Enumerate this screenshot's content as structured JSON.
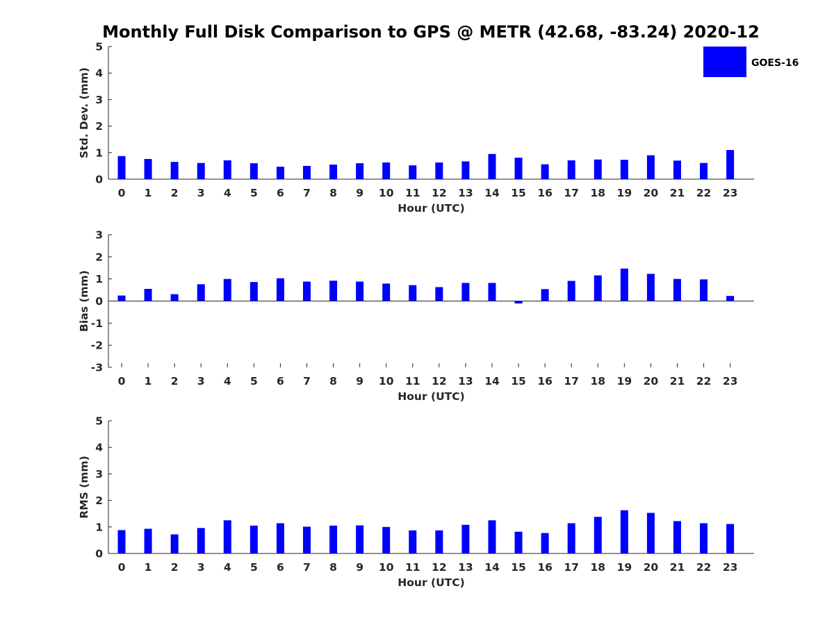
{
  "title": "Monthly Full Disk Comparison to GPS @ METR (42.68, -83.24) 2020-12",
  "colors": {
    "bar": "#0000ff",
    "axis": "#262626"
  },
  "legend": {
    "label": "GOES-16",
    "placement": "top-right"
  },
  "chart_data": [
    {
      "type": "bar",
      "id": "std",
      "title": "",
      "xlabel": "Hour (UTC)",
      "ylabel": "Std. Dev. (mm)",
      "ylim": [
        0,
        5
      ],
      "yticks": [
        0,
        1,
        2,
        3,
        4,
        5
      ],
      "categories": [
        "0",
        "1",
        "2",
        "3",
        "4",
        "5",
        "6",
        "7",
        "8",
        "9",
        "10",
        "11",
        "12",
        "13",
        "14",
        "15",
        "16",
        "17",
        "18",
        "19",
        "20",
        "21",
        "22",
        "23"
      ],
      "series": [
        {
          "name": "GOES-16",
          "values": [
            0.87,
            0.76,
            0.65,
            0.61,
            0.71,
            0.6,
            0.47,
            0.5,
            0.55,
            0.6,
            0.63,
            0.52,
            0.63,
            0.67,
            0.95,
            0.81,
            0.56,
            0.71,
            0.74,
            0.73,
            0.9,
            0.7,
            0.61,
            1.1
          ]
        }
      ]
    },
    {
      "type": "bar",
      "id": "bias",
      "title": "",
      "xlabel": "Hour (UTC)",
      "ylabel": "Bias (mm)",
      "ylim": [
        -3,
        3
      ],
      "yticks": [
        -3,
        -2,
        -1,
        0,
        1,
        2,
        3
      ],
      "categories": [
        "0",
        "1",
        "2",
        "3",
        "4",
        "5",
        "6",
        "7",
        "8",
        "9",
        "10",
        "11",
        "12",
        "13",
        "14",
        "15",
        "16",
        "17",
        "18",
        "19",
        "20",
        "21",
        "22",
        "23"
      ],
      "series": [
        {
          "name": "GOES-16",
          "values": [
            0.25,
            0.55,
            0.31,
            0.76,
            1.0,
            0.86,
            1.03,
            0.88,
            0.92,
            0.88,
            0.79,
            0.72,
            0.63,
            0.82,
            0.82,
            -0.11,
            0.54,
            0.91,
            1.16,
            1.47,
            1.23,
            1.0,
            0.98,
            0.23
          ]
        }
      ]
    },
    {
      "type": "bar",
      "id": "rms",
      "title": "",
      "xlabel": "Hour (UTC)",
      "ylabel": "RMS (mm)",
      "ylim": [
        0,
        5
      ],
      "yticks": [
        0,
        1,
        2,
        3,
        4,
        5
      ],
      "categories": [
        "0",
        "1",
        "2",
        "3",
        "4",
        "5",
        "6",
        "7",
        "8",
        "9",
        "10",
        "11",
        "12",
        "13",
        "14",
        "15",
        "16",
        "17",
        "18",
        "19",
        "20",
        "21",
        "22",
        "23"
      ],
      "series": [
        {
          "name": "GOES-16",
          "values": [
            0.88,
            0.93,
            0.72,
            0.96,
            1.25,
            1.05,
            1.14,
            1.01,
            1.05,
            1.06,
            1.0,
            0.87,
            0.87,
            1.08,
            1.25,
            0.82,
            0.77,
            1.14,
            1.38,
            1.63,
            1.53,
            1.22,
            1.14,
            1.11
          ]
        }
      ]
    }
  ]
}
